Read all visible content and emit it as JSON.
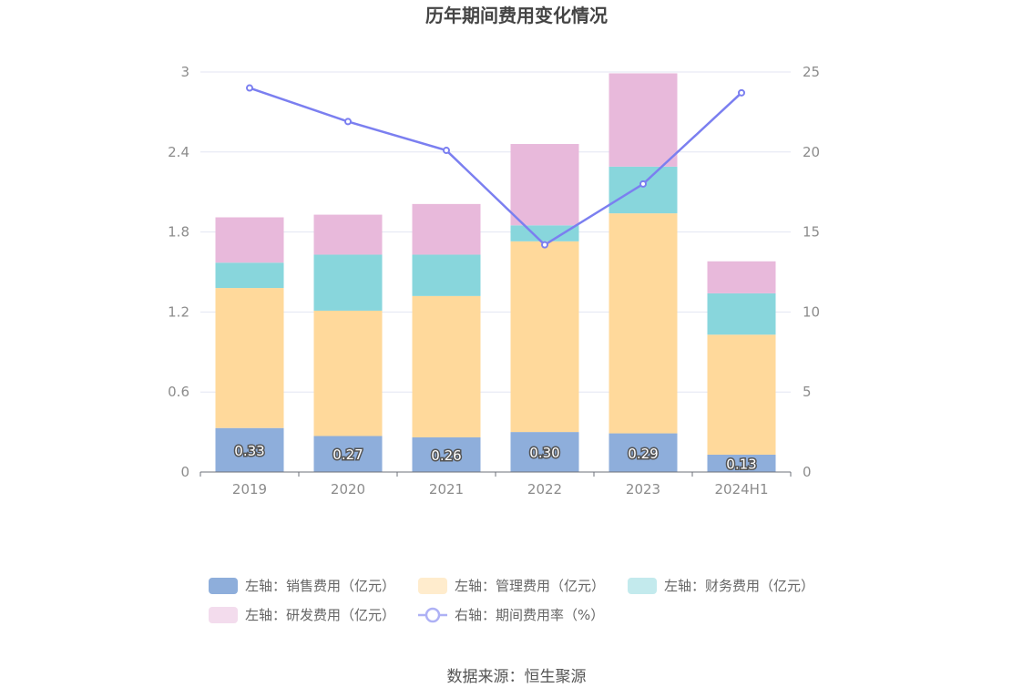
{
  "chart_data": {
    "type": "bar",
    "stacked": true,
    "title": "历年期间费用变化情况",
    "categories": [
      "2019",
      "2020",
      "2021",
      "2022",
      "2023",
      "2024H1"
    ],
    "series": [
      {
        "name": "左轴：销售费用（亿元）",
        "axis": "left",
        "values": [
          0.33,
          0.27,
          0.26,
          0.3,
          0.29,
          0.13
        ],
        "color": "#8eaedb",
        "data_labels": [
          "0.33",
          "0.27",
          "0.26",
          "0.30",
          "0.29",
          "0.13"
        ]
      },
      {
        "name": "左轴：管理费用（亿元）",
        "axis": "left",
        "values": [
          1.05,
          0.94,
          1.06,
          1.43,
          1.65,
          0.9
        ],
        "color": "#ffd99b"
      },
      {
        "name": "左轴：财务费用（亿元）",
        "axis": "left",
        "values": [
          0.19,
          0.42,
          0.31,
          0.12,
          0.35,
          0.31
        ],
        "color": "#88d6dc"
      },
      {
        "name": "左轴：研发费用（亿元）",
        "axis": "left",
        "values": [
          0.34,
          0.3,
          0.38,
          0.61,
          0.7,
          0.24
        ],
        "color": "#e8b9db"
      },
      {
        "name": "右轴：期间费用率（%）",
        "axis": "right",
        "type": "line",
        "values": [
          24.0,
          21.9,
          20.1,
          14.2,
          18.0,
          23.7
        ],
        "color": "#7b7ff0"
      }
    ],
    "y_left": {
      "min": 0,
      "max": 3,
      "ticks": [
        "0",
        "0.6",
        "1.2",
        "1.8",
        "2.4",
        "3"
      ]
    },
    "y_right": {
      "min": 0,
      "max": 25,
      "ticks": [
        "0",
        "5",
        "10",
        "15",
        "20",
        "25"
      ]
    },
    "grid": true,
    "legend_position": "bottom",
    "source": "数据来源：恒生聚源"
  }
}
